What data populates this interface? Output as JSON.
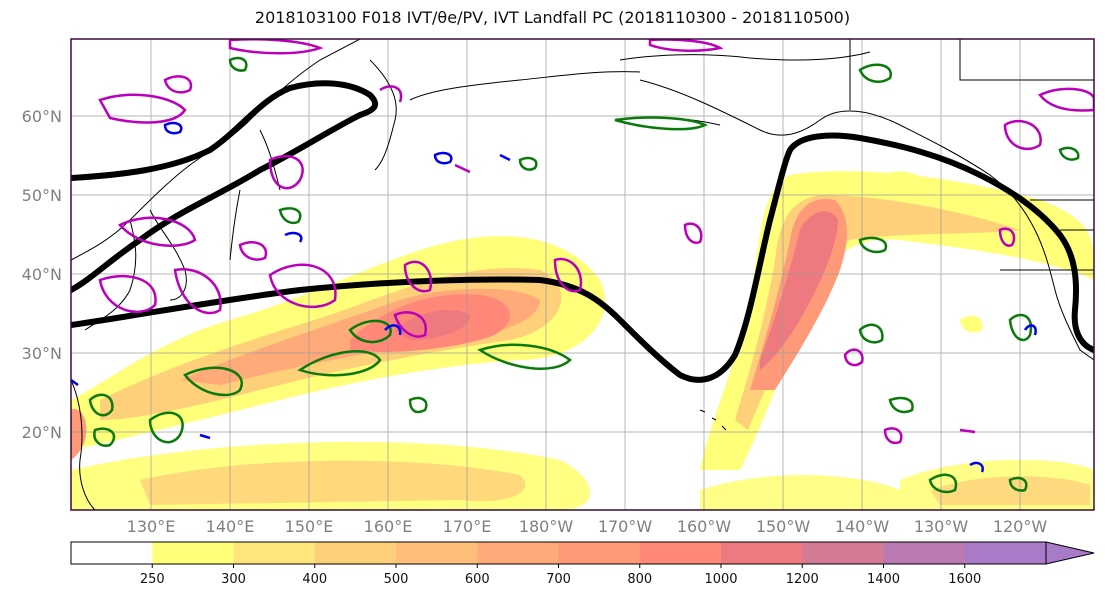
{
  "title": "2018103100 F018 IVT/θe/PV, IVT Landfall PC (2018110300 - 2018110500)",
  "map": {
    "lat_labels": [
      "60°N",
      "50°N",
      "40°N",
      "30°N",
      "20°N"
    ],
    "lon_labels": [
      "130°E",
      "140°E",
      "150°E",
      "160°E",
      "170°E",
      "180°W",
      "170°W",
      "160°W",
      "150°W",
      "140°W",
      "130°W",
      "120°W"
    ]
  },
  "colorbar": {
    "ticks": [
      "250",
      "300",
      "400",
      "500",
      "600",
      "700",
      "800",
      "1000",
      "1200",
      "1400",
      "1600"
    ],
    "colors": [
      "#ffffff",
      "#ffff7a",
      "#ffe57a",
      "#ffd07a",
      "#ffbf7a",
      "#ffaa78",
      "#ff9a78",
      "#ff8878",
      "#ee7a80",
      "#d37a95",
      "#b87ab0",
      "#a87ac8"
    ]
  },
  "colors": {
    "pv_contour": "#0a7a0a",
    "theta_contour": "#0000ee",
    "ivt_contour": "#bb00bb",
    "landfall_pc": "#000000",
    "coastline": "#000000"
  }
}
